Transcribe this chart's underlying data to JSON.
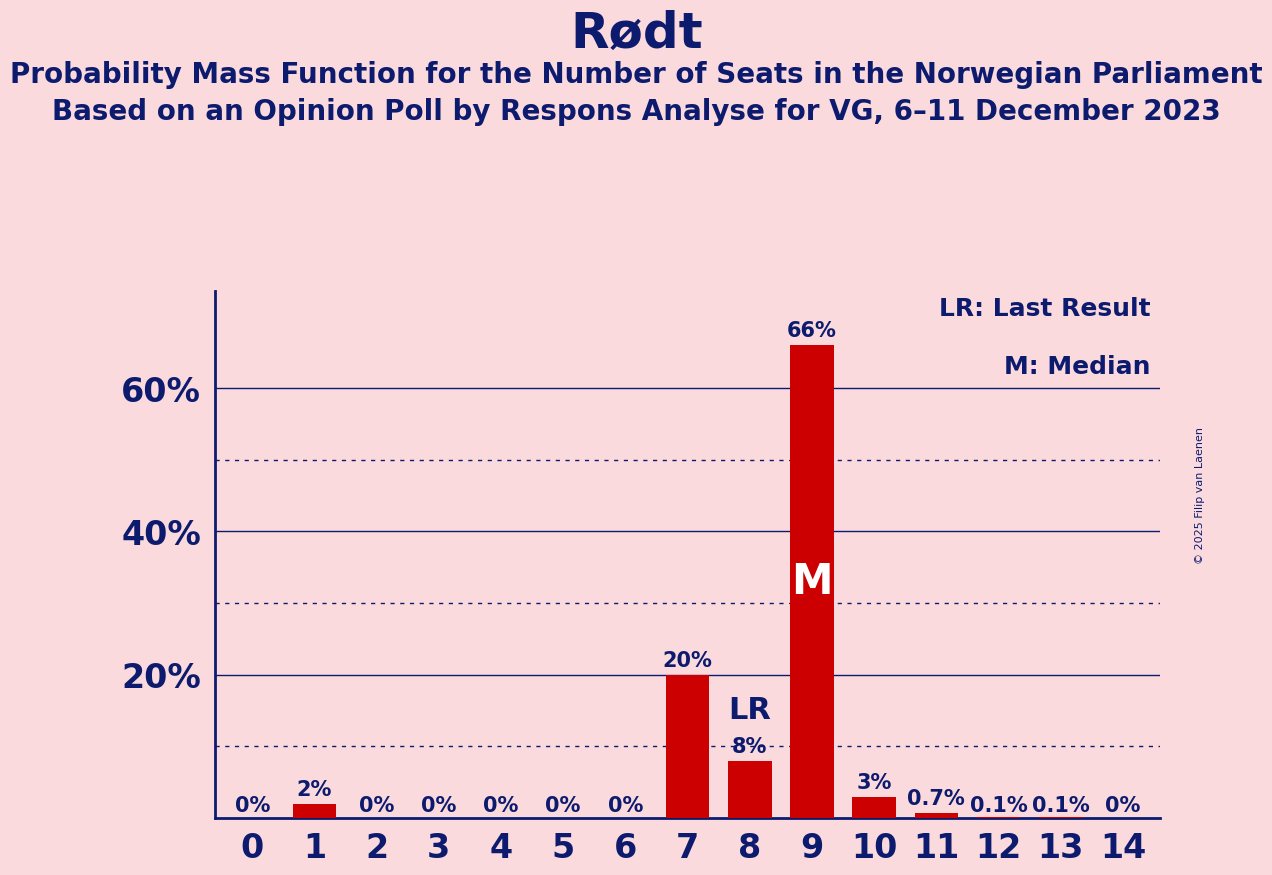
{
  "title": "Rødt",
  "subtitle1": "Probability Mass Function for the Number of Seats in the Norwegian Parliament",
  "subtitle2": "Based on an Opinion Poll by Respons Analyse for VG, 6–11 December 2023",
  "copyright": "© 2025 Filip van Laenen",
  "categories": [
    0,
    1,
    2,
    3,
    4,
    5,
    6,
    7,
    8,
    9,
    10,
    11,
    12,
    13,
    14
  ],
  "values": [
    0.0,
    0.02,
    0.0,
    0.0,
    0.0,
    0.0,
    0.0,
    0.2,
    0.08,
    0.66,
    0.03,
    0.007,
    0.001,
    0.001,
    0.0
  ],
  "bar_labels": [
    "0%",
    "2%",
    "0%",
    "0%",
    "0%",
    "0%",
    "0%",
    "20%",
    "8%",
    "66%",
    "3%",
    "0.7%",
    "0.1%",
    "0.1%",
    "0%"
  ],
  "last_result_bar": 8,
  "median_bar": 9,
  "bar_color": "#CC0000",
  "background_color": "#FADADD",
  "text_color": "#0D1B6E",
  "title_fontsize": 36,
  "subtitle_fontsize": 20,
  "solid_grid": [
    0.2,
    0.4,
    0.6
  ],
  "dotted_grid": [
    0.1,
    0.3,
    0.5
  ],
  "legend_lr": "LR: Last Result",
  "legend_m": "M: Median",
  "ylim": [
    0,
    0.735
  ]
}
